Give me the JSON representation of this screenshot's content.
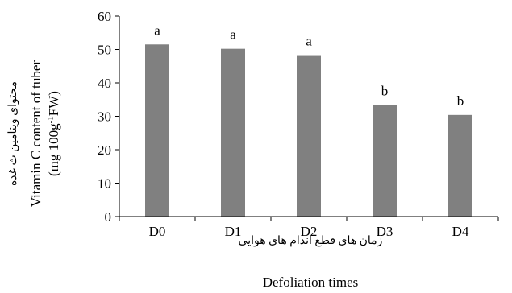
{
  "chart_data": {
    "type": "bar",
    "categories": [
      "D0",
      "D1",
      "D2",
      "D3",
      "D4"
    ],
    "values": [
      51.5,
      50.2,
      48.3,
      33.4,
      30.4
    ],
    "data_labels": [
      "a",
      "a",
      "a",
      "b",
      "b"
    ],
    "ylim": [
      0,
      60
    ],
    "yticks": [
      0,
      10,
      20,
      30,
      40,
      50,
      60
    ],
    "ylabel_fa": "محتوای ویتامین ث غده",
    "ylabel_line1": "Vitamin C content of tuber",
    "ylabel_line2_pre": "(mg 100g",
    "ylabel_line2_sup": "-1",
    "ylabel_line2_post": "FW)",
    "xlabel_fa": "زمان های قطع اندام های هوایی",
    "xlabel": "Defoliation times",
    "grid": false,
    "bar_color": "#808080",
    "axis_color": "#000000"
  }
}
